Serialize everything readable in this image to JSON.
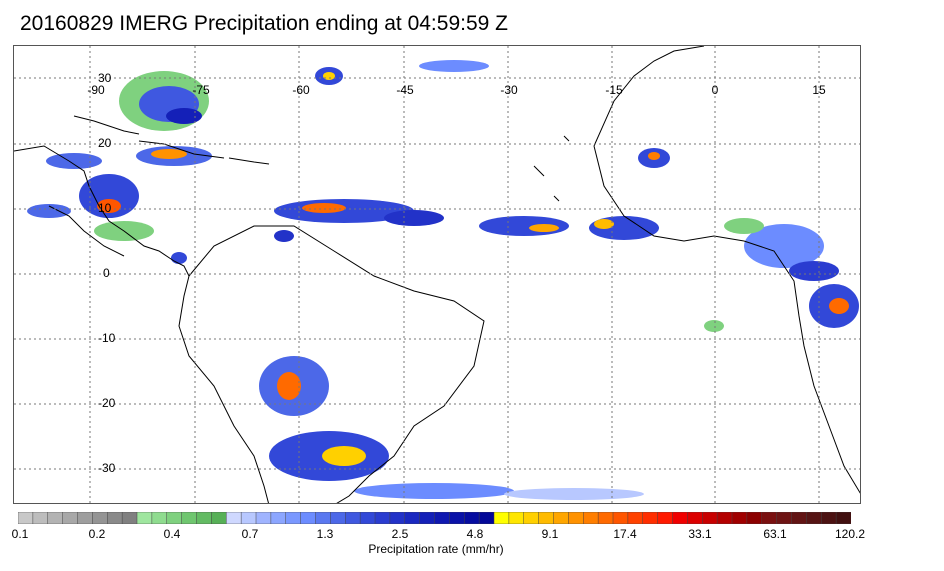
{
  "title": "20160829 IMERG Precipitation ending at 04:59:59 Z",
  "map": {
    "lon_labels": [
      "-90",
      "-75",
      "-60",
      "-45",
      "-30",
      "-15",
      "0",
      "15"
    ],
    "lat_labels": [
      "30",
      "20",
      "10",
      "0",
      "-10",
      "-20",
      "-30"
    ],
    "colors": {
      "coast": "#000000",
      "grid": "#777777"
    }
  },
  "colorbar": {
    "tick_labels": [
      "0.1",
      "0.2",
      "0.4",
      "0.7",
      "1.3",
      "2.5",
      "4.8",
      "9.1",
      "17.4",
      "33.1",
      "63.1",
      "120.2"
    ],
    "title": "Precipitation rate (mm/hr)",
    "colors": [
      "#c8c8c8",
      "#bdbdbd",
      "#b3b3b3",
      "#a8a8a8",
      "#9e9e9e",
      "#949494",
      "#8a8a8a",
      "#808080",
      "#9fe69f",
      "#8fdc8f",
      "#7fd17f",
      "#6fc66f",
      "#63bb63",
      "#57b057",
      "#cfd8ff",
      "#b8c8ff",
      "#a0b4ff",
      "#8ca6ff",
      "#7a98ff",
      "#6c8cff",
      "#5a78f0",
      "#4c68e8",
      "#3f58e0",
      "#3248d8",
      "#2a3cd0",
      "#2232c8",
      "#1a28c0",
      "#1420b8",
      "#0f18b0",
      "#0a12a8",
      "#060ca0",
      "#030898",
      "#ffff00",
      "#ffe600",
      "#ffd000",
      "#ffbb00",
      "#ffa600",
      "#ff9200",
      "#ff7e00",
      "#ff6a00",
      "#ff5600",
      "#ff4200",
      "#ff2e00",
      "#ff1a00",
      "#f00000",
      "#dc0000",
      "#c80000",
      "#b40000",
      "#a00000",
      "#8c0000",
      "#7a1010",
      "#6e1414",
      "#621414",
      "#561414",
      "#4c1212",
      "#421010"
    ]
  }
}
